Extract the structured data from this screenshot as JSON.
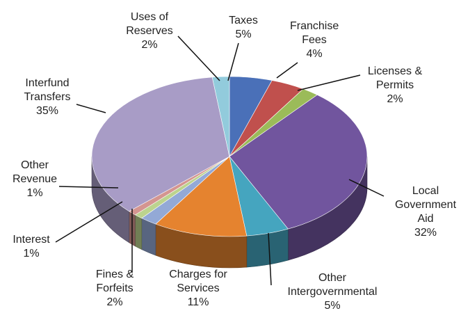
{
  "chart_data": {
    "type": "pie",
    "categories": [
      "Taxes",
      "Franchise Fees",
      "Licenses & Permits",
      "Local Government Aid",
      "Other Intergovernmental",
      "Charges for Services",
      "Fines & Forfeits",
      "Interest",
      "Other Revenue",
      "Interfund Transfers",
      "Uses of Reserves"
    ],
    "values": [
      5,
      4,
      2,
      32,
      5,
      11,
      2,
      1,
      1,
      35,
      2
    ],
    "value_labels": [
      "5%",
      "4%",
      "2%",
      "32%",
      "5%",
      "11%",
      "2%",
      "1%",
      "1%",
      "35%",
      "2%"
    ],
    "colors": [
      "#4a70b8",
      "#c0504d",
      "#9bbb59",
      "#71559e",
      "#45a5bf",
      "#e5832f",
      "#93a9d6",
      "#bcd38e",
      "#d49590",
      "#a89cc6",
      "#92cbdc"
    ]
  }
}
